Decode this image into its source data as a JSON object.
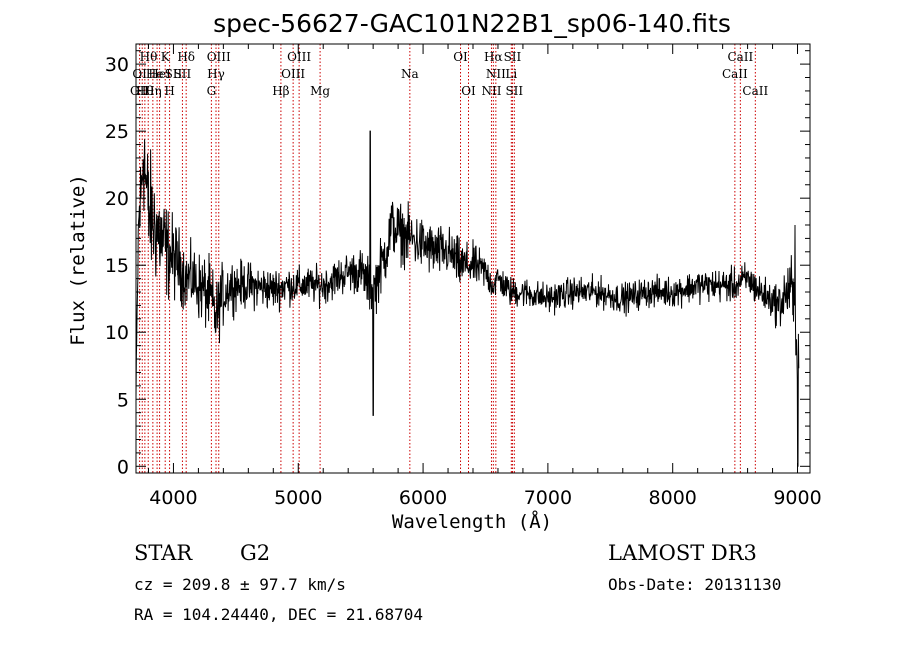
{
  "chart_data": {
    "type": "line",
    "title": "spec-56627-GAC101N22B1_sp06-140.fits",
    "xlabel": "Wavelength (Å)",
    "ylabel": "Flux (relative)",
    "xlim": [
      3700,
      9100
    ],
    "ylim": [
      -0.5,
      31.5
    ],
    "xticks": [
      4000,
      5000,
      6000,
      7000,
      8000,
      9000
    ],
    "yticks": [
      0,
      5,
      10,
      15,
      20,
      25,
      30
    ],
    "grid": false,
    "series_color": "#000000",
    "line_color": "#cc0000",
    "anchors": [
      [
        3700,
        5
      ],
      [
        3720,
        18
      ],
      [
        3740,
        20
      ],
      [
        3760,
        24
      ],
      [
        3780,
        21
      ],
      [
        3800,
        19
      ],
      [
        3850,
        18
      ],
      [
        3900,
        17
      ],
      [
        3950,
        16
      ],
      [
        4000,
        15.5
      ],
      [
        4050,
        15
      ],
      [
        4100,
        14
      ],
      [
        4150,
        14
      ],
      [
        4200,
        13.5
      ],
      [
        4250,
        13
      ],
      [
        4300,
        12.5
      ],
      [
        4340,
        11
      ],
      [
        4380,
        12.5
      ],
      [
        4450,
        13.5
      ],
      [
        4600,
        13.5
      ],
      [
        4800,
        13.2
      ],
      [
        4900,
        13.5
      ],
      [
        5000,
        13.5
      ],
      [
        5100,
        13.5
      ],
      [
        5200,
        13.5
      ],
      [
        5300,
        14
      ],
      [
        5400,
        14.5
      ],
      [
        5500,
        14.5
      ],
      [
        5600,
        13
      ],
      [
        5700,
        16
      ],
      [
        5750,
        18
      ],
      [
        5800,
        17.5
      ],
      [
        5900,
        17
      ],
      [
        6000,
        16.5
      ],
      [
        6100,
        16
      ],
      [
        6200,
        16
      ],
      [
        6300,
        15
      ],
      [
        6400,
        15
      ],
      [
        6500,
        14.5
      ],
      [
        6560,
        13.5
      ],
      [
        6600,
        14
      ],
      [
        6700,
        13
      ],
      [
        6800,
        13
      ],
      [
        7000,
        12.5
      ],
      [
        7200,
        13
      ],
      [
        7400,
        13
      ],
      [
        7600,
        12.5
      ],
      [
        7800,
        13
      ],
      [
        8000,
        13
      ],
      [
        8200,
        13.5
      ],
      [
        8400,
        13.5
      ],
      [
        8500,
        13.5
      ],
      [
        8600,
        14
      ],
      [
        8700,
        13
      ],
      [
        8850,
        12
      ],
      [
        8950,
        13.5
      ],
      [
        9000,
        9
      ]
    ],
    "noise": [
      [
        3700,
        1.2
      ],
      [
        3750,
        4.5
      ],
      [
        3900,
        3.5
      ],
      [
        4100,
        2
      ],
      [
        4300,
        2.5
      ],
      [
        4500,
        1.6
      ],
      [
        5000,
        1.2
      ],
      [
        5400,
        1.3
      ],
      [
        5700,
        2
      ],
      [
        6000,
        1.8
      ],
      [
        6300,
        1.6
      ],
      [
        6600,
        1
      ],
      [
        7000,
        1
      ],
      [
        8000,
        1
      ],
      [
        8800,
        1.2
      ],
      [
        9000,
        2.5
      ]
    ],
    "spikes": [
      {
        "x": 5577,
        "y": 25
      },
      {
        "x": 5600,
        "y": 3.8
      },
      {
        "x": 8980,
        "y": 18
      },
      {
        "x": 9003,
        "y": 0
      }
    ],
    "lines": [
      {
        "x": 3729,
        "top": [
          "OII"
        ],
        "bottom": []
      },
      {
        "x": 3750,
        "top": [
          "Hθ"
        ],
        "bottom": []
      },
      {
        "x": 3771,
        "top": [
          "Hη",
          "H"
        ],
        "bottom": []
      },
      {
        "x": 3798,
        "top": [
          "Hθ"
        ],
        "bottom": []
      },
      {
        "x": 3835,
        "top": [
          "Hη"
        ],
        "bottom": []
      },
      {
        "x": 3869,
        "top": [
          "NeIII"
        ],
        "bottom": []
      },
      {
        "x": 3889,
        "top": [
          "HeI"
        ],
        "bottom": []
      },
      {
        "x": 3934,
        "top": [
          "K"
        ],
        "bottom": []
      },
      {
        "x": 3969,
        "top": [
          "H",
          "SII"
        ],
        "bottom": []
      },
      {
        "x": 4072,
        "top": [
          "SII"
        ],
        "bottom": []
      },
      {
        "x": 4102,
        "top": [
          "Hδ"
        ],
        "bottom": []
      },
      {
        "x": 4304,
        "top": [
          "G"
        ],
        "bottom": []
      },
      {
        "x": 4341,
        "top": [
          "Hγ"
        ],
        "bottom": []
      },
      {
        "x": 4363,
        "top": [
          "OIII"
        ],
        "bottom": []
      },
      {
        "x": 4861,
        "top": [
          "Hβ"
        ],
        "bottom": []
      },
      {
        "x": 4959,
        "top": [
          "OIII"
        ],
        "bottom": []
      },
      {
        "x": 5007,
        "top": [
          "OIII"
        ],
        "bottom": []
      },
      {
        "x": 5175,
        "top": [
          "Mg"
        ],
        "bottom": []
      },
      {
        "x": 5894,
        "top": [
          "Na"
        ],
        "bottom": []
      },
      {
        "x": 6300,
        "top": [
          "OI"
        ],
        "bottom": []
      },
      {
        "x": 6364,
        "top": [
          "OI"
        ],
        "bottom": []
      },
      {
        "x": 6548,
        "top": [
          "NII"
        ],
        "bottom": []
      },
      {
        "x": 6563,
        "top": [
          "Hα"
        ],
        "bottom": []
      },
      {
        "x": 6583,
        "top": [
          "NII"
        ],
        "bottom": []
      },
      {
        "x": 6707,
        "top": [
          "Li"
        ],
        "bottom": []
      },
      {
        "x": 6716,
        "top": [
          "SII"
        ],
        "bottom": []
      },
      {
        "x": 6731,
        "top": [
          "SII"
        ],
        "bottom": []
      },
      {
        "x": 8498,
        "top": [
          "CaII"
        ],
        "bottom": []
      },
      {
        "x": 8542,
        "top": [
          "CaII"
        ],
        "bottom": []
      },
      {
        "x": 8662,
        "top": [
          "CaII"
        ],
        "bottom": []
      }
    ]
  },
  "line_label_rows": [
    [
      {
        "text": "Hθ",
        "x": 3800
      },
      {
        "text": "K",
        "x": 3934
      },
      {
        "text": "Hδ",
        "x": 4102
      },
      {
        "text": "OIII",
        "x": 4363
      },
      {
        "text": "OIII",
        "x": 5007
      },
      {
        "text": "OI",
        "x": 6300
      },
      {
        "text": "Hα",
        "x": 6563
      },
      {
        "text": "SII",
        "x": 6716
      },
      {
        "text": "CaII",
        "x": 8542
      }
    ],
    [
      {
        "text": "OI",
        "x": 3729
      },
      {
        "text": "He",
        "x": 3850
      },
      {
        "text": "HeI",
        "x": 3889
      },
      {
        "text": "SII",
        "x": 4000
      },
      {
        "text": "SII",
        "x": 4072
      },
      {
        "text": "Hγ",
        "x": 4341
      },
      {
        "text": "OIII",
        "x": 4959
      },
      {
        "text": "Na",
        "x": 5894
      },
      {
        "text": "NII",
        "x": 6583
      },
      {
        "text": "Li",
        "x": 6707
      },
      {
        "text": "CaII",
        "x": 8498
      }
    ],
    [
      {
        "text": "OII",
        "x": 3729
      },
      {
        "text": "Hθ",
        "x": 3771
      },
      {
        "text": "Hη",
        "x": 3835
      },
      {
        "text": "H",
        "x": 3969
      },
      {
        "text": "G",
        "x": 4304
      },
      {
        "text": "Hβ",
        "x": 4861
      },
      {
        "text": "Mg",
        "x": 5175
      },
      {
        "text": "OI",
        "x": 6364
      },
      {
        "text": "NII",
        "x": 6548
      },
      {
        "text": "SII",
        "x": 6731
      },
      {
        "text": "CaII",
        "x": 8662
      }
    ]
  ],
  "info": {
    "class": "STAR",
    "subclass": "G2",
    "survey": "LAMOST DR3",
    "cz": "cz = 209.8 ± 97.7 km/s",
    "obs_date": "Obs-Date: 20131130",
    "radec": "RA = 104.24440, DEC =  21.68704"
  }
}
